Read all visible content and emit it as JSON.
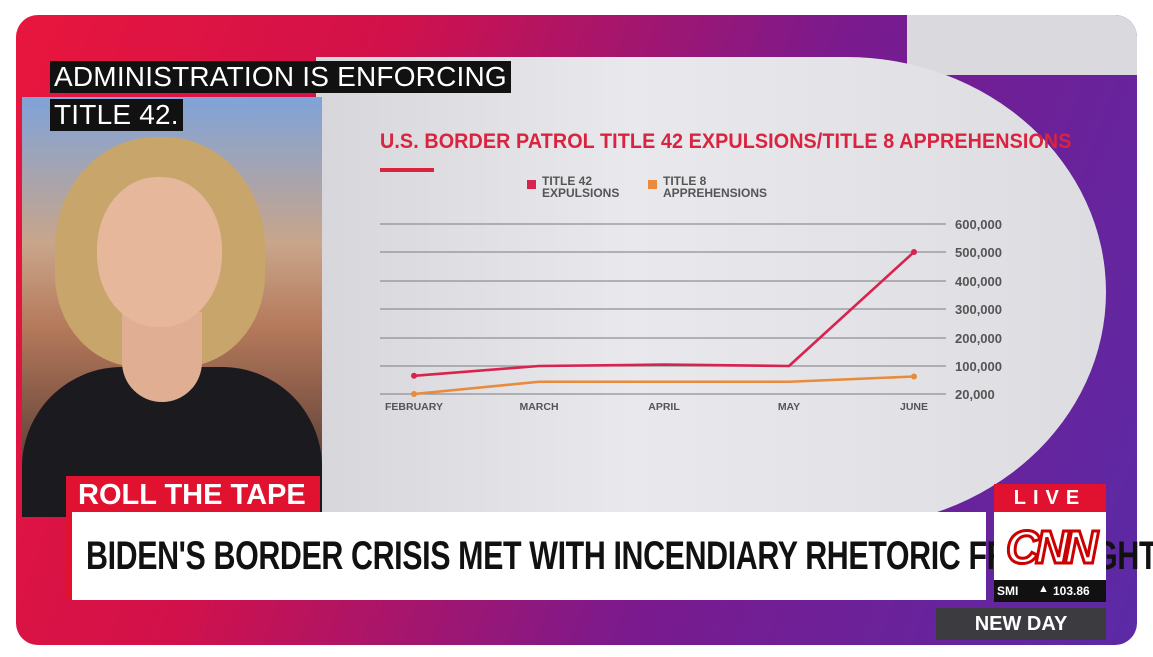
{
  "caption": {
    "line1": "ADMINISTRATION IS ENFORCING",
    "line2": "TITLE 42."
  },
  "chart_data": {
    "type": "line",
    "title": "U.S. BORDER PATROL TITLE 42 EXPULSIONS/TITLE 8 APPREHENSIONS",
    "categories": [
      "FEBRUARY",
      "MARCH",
      "APRIL",
      "MAY",
      "JUNE"
    ],
    "series": [
      {
        "name": "TITLE 42 EXPULSIONS",
        "color": "#d9234f",
        "values": [
          72000,
          100000,
          105000,
          100000,
          500000
        ]
      },
      {
        "name": "TITLE 8 APPREHENSIONS",
        "color": "#e98a3c",
        "values": [
          20000,
          55000,
          55000,
          55000,
          70000
        ]
      }
    ],
    "yticks": [
      20000,
      100000,
      200000,
      300000,
      400000,
      500000,
      600000
    ],
    "ytick_labels": [
      "20,000",
      "100,000",
      "200,000",
      "300,000",
      "400,000",
      "500,000",
      "600,000"
    ],
    "ylim": [
      0,
      600000
    ],
    "grid": true,
    "legend_position": "top"
  },
  "lower_third": {
    "label": "ROLL THE TAPE",
    "headline": "BIDEN'S BORDER CRISIS MET WITH INCENDIARY RHETORIC FROM RIGHT"
  },
  "network": {
    "live": "LIVE",
    "logo": "CNN",
    "ticker_name": "SMI",
    "ticker_arrow": "▲",
    "ticker_value": "103.86",
    "show": "NEW DAY",
    "accent": "#e0122f"
  }
}
